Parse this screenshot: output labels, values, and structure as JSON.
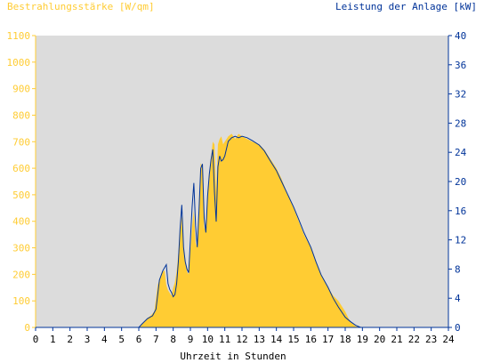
{
  "chart_data": {
    "type": "area",
    "title": "",
    "left_axis_label": "Bestrahlungsstärke [W/qm]",
    "right_axis_label": "Leistung der Anlage [kW]",
    "xlabel": "Uhrzeit in Stunden",
    "xlim": [
      0,
      24
    ],
    "ylim_left": [
      0,
      1100
    ],
    "ylim_right": [
      0,
      40
    ],
    "x_ticks": [
      "0",
      "1",
      "2",
      "3",
      "4",
      "5",
      "6",
      "7",
      "8",
      "9",
      "10",
      "11",
      "12",
      "13",
      "14",
      "15",
      "16",
      "17",
      "18",
      "19",
      "20",
      "21",
      "22",
      "23",
      "24"
    ],
    "y_left_ticks": [
      "0",
      "100",
      "200",
      "300",
      "400",
      "500",
      "600",
      "700",
      "800",
      "900",
      "1000",
      "1100"
    ],
    "y_right_ticks": [
      "0",
      "4",
      "8",
      "12",
      "16",
      "20",
      "24",
      "28",
      "32",
      "36",
      "40"
    ],
    "grid": false,
    "colors": {
      "irradiance_fill": "#ffcc33",
      "irradiance_axis": "#ffcc33",
      "power_line": "#003399",
      "power_axis": "#003399",
      "plot_background": "#dcdcdc"
    },
    "series": [
      {
        "name": "Bestrahlungsstärke [W/qm]",
        "axis": "left",
        "style": "area",
        "x": [
          0,
          6,
          6.1,
          6.3,
          6.5,
          6.7,
          6.9,
          7.0,
          7.1,
          7.2,
          7.3,
          7.4,
          7.5,
          7.6,
          7.7,
          7.8,
          7.9,
          8.0,
          8.1,
          8.2,
          8.3,
          8.4,
          8.5,
          8.6,
          8.7,
          8.8,
          8.9,
          9.0,
          9.1,
          9.2,
          9.3,
          9.4,
          9.5,
          9.6,
          9.7,
          9.8,
          9.9,
          10.0,
          10.1,
          10.2,
          10.3,
          10.4,
          10.5,
          10.6,
          10.7,
          10.8,
          10.9,
          11.0,
          11.2,
          11.4,
          11.6,
          11.8,
          12.0,
          12.3,
          12.6,
          13.0,
          13.3,
          13.6,
          14.0,
          14.3,
          14.6,
          15.0,
          15.3,
          15.6,
          16.0,
          16.3,
          16.6,
          17.0,
          17.3,
          17.6,
          18.0,
          18.3,
          18.6,
          18.9,
          19.1,
          24
        ],
        "y": [
          0,
          0,
          5,
          20,
          35,
          45,
          60,
          110,
          160,
          180,
          200,
          210,
          215,
          160,
          140,
          130,
          120,
          150,
          170,
          210,
          280,
          360,
          420,
          300,
          260,
          210,
          200,
          290,
          380,
          440,
          320,
          300,
          460,
          620,
          600,
          370,
          390,
          520,
          560,
          640,
          700,
          690,
          510,
          690,
          710,
          720,
          690,
          700,
          720,
          730,
          710,
          730,
          720,
          710,
          700,
          690,
          670,
          640,
          600,
          560,
          510,
          450,
          400,
          350,
          300,
          250,
          200,
          150,
          120,
          100,
          60,
          20,
          5,
          0,
          0,
          0
        ]
      },
      {
        "name": "Leistung der Anlage [kW]",
        "axis": "right",
        "style": "line",
        "x": [
          0,
          6,
          6.2,
          6.5,
          6.8,
          7.0,
          7.2,
          7.4,
          7.5,
          7.6,
          7.7,
          7.8,
          7.9,
          8.0,
          8.1,
          8.2,
          8.3,
          8.4,
          8.5,
          8.6,
          8.7,
          8.8,
          8.9,
          9.0,
          9.1,
          9.2,
          9.3,
          9.4,
          9.5,
          9.6,
          9.7,
          9.8,
          9.9,
          10.0,
          10.1,
          10.2,
          10.3,
          10.4,
          10.5,
          10.6,
          10.7,
          10.8,
          10.9,
          11.0,
          11.2,
          11.4,
          11.6,
          11.8,
          12.0,
          12.3,
          12.6,
          13.0,
          13.3,
          13.6,
          14.0,
          14.3,
          14.6,
          15.0,
          15.3,
          15.6,
          16.0,
          16.3,
          16.6,
          17.0,
          17.3,
          17.6,
          18.0,
          18.3,
          18.6,
          18.9,
          19.1,
          24
        ],
        "y": [
          0,
          0,
          0.5,
          1.2,
          1.6,
          2.5,
          6.5,
          7.8,
          8.2,
          8.6,
          6.0,
          5.2,
          4.8,
          4.2,
          4.5,
          6.0,
          9.0,
          13.5,
          16.8,
          11.0,
          9.0,
          8.0,
          7.5,
          12.0,
          16.5,
          19.8,
          14.0,
          11.0,
          16.0,
          21.8,
          22.4,
          15.0,
          13.0,
          18.0,
          21.0,
          23.0,
          24.4,
          18.5,
          14.5,
          22.0,
          23.5,
          22.8,
          23.0,
          23.5,
          25.5,
          26.0,
          26.2,
          26.0,
          26.2,
          26.0,
          25.6,
          25.0,
          24.2,
          23.0,
          21.5,
          20.0,
          18.5,
          16.5,
          14.8,
          13.0,
          11.0,
          9.0,
          7.2,
          5.5,
          4.0,
          2.8,
          1.4,
          0.8,
          0.3,
          0,
          0,
          0
        ]
      }
    ]
  }
}
